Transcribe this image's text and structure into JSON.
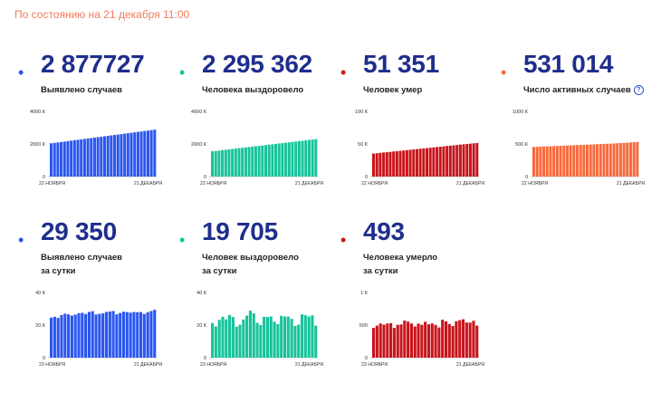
{
  "header": {
    "status": "По состоянию на 21 декабря 11:00"
  },
  "stats": [
    {
      "value": "2 877727",
      "label_lines": [
        "Выявлено случаев"
      ],
      "color": "#2a56f0",
      "info": false
    },
    {
      "value": "2 295 362",
      "label_lines": [
        "Человека выздоровело"
      ],
      "color": "#17c39b",
      "info": false
    },
    {
      "value": "51 351",
      "label_lines": [
        "Человек умер"
      ],
      "color": "#c8151b",
      "info": false
    },
    {
      "value": "531 014",
      "label_lines": [
        "Число активных случаев"
      ],
      "color": "#f86a3d",
      "info": true
    },
    {
      "value": "29 350",
      "label_lines": [
        "Выявлено случаев",
        "за сутки"
      ],
      "color": "#2a56f0",
      "info": false
    },
    {
      "value": "19 705",
      "label_lines": [
        "Человек выздоровело",
        "за сутки"
      ],
      "color": "#17c39b",
      "info": false
    },
    {
      "value": "493",
      "label_lines": [
        "Человека умерло",
        "за сутки"
      ],
      "color": "#c8151b",
      "info": false
    }
  ],
  "chart_data": [
    {
      "type": "bar",
      "title": "Выявлено случаев",
      "color": "#2a56f0",
      "x_start_label": "22 НОЯБРЯ",
      "x_end_label": "21 ДЕКАБРЯ",
      "ylim": [
        0,
        4000
      ],
      "yticks": [
        0,
        2000,
        4000
      ],
      "ytick_labels": [
        "0",
        "2000 К",
        "4000 К"
      ],
      "values": [
        2040,
        2067,
        2094,
        2121,
        2148,
        2175,
        2202,
        2229,
        2256,
        2283,
        2310,
        2337,
        2364,
        2391,
        2418,
        2445,
        2472,
        2499,
        2526,
        2553,
        2580,
        2607,
        2634,
        2661,
        2688,
        2715,
        2742,
        2769,
        2796,
        2823,
        2850,
        2878
      ]
    },
    {
      "type": "bar",
      "title": "Человека выздоровело",
      "color": "#17c39b",
      "x_start_label": "22 НОЯБРЯ",
      "x_end_label": "21 ДЕКАБРЯ",
      "ylim": [
        0,
        4000
      ],
      "yticks": [
        0,
        2000,
        4000
      ],
      "ytick_labels": [
        "0",
        "2000 К",
        "4000 К"
      ],
      "values": [
        1550,
        1574,
        1598,
        1622,
        1646,
        1670,
        1694,
        1718,
        1742,
        1766,
        1790,
        1814,
        1838,
        1862,
        1886,
        1910,
        1934,
        1958,
        1982,
        2006,
        2030,
        2054,
        2078,
        2102,
        2126,
        2150,
        2174,
        2198,
        2222,
        2246,
        2270,
        2295
      ]
    },
    {
      "type": "bar",
      "title": "Человек умер",
      "color": "#c8151b",
      "x_start_label": "22 НОЯБРЯ",
      "x_end_label": "21 ДЕКАБРЯ",
      "ylim": [
        0,
        100
      ],
      "yticks": [
        0,
        50,
        100
      ],
      "ytick_labels": [
        "0",
        "50 К",
        "100 К"
      ],
      "values": [
        35.3,
        35.8,
        36.4,
        36.9,
        37.4,
        37.9,
        38.5,
        39.0,
        39.5,
        40.0,
        40.6,
        41.1,
        41.6,
        42.1,
        42.7,
        43.2,
        43.7,
        44.2,
        44.8,
        45.3,
        45.8,
        46.3,
        46.9,
        47.4,
        47.9,
        48.4,
        49.0,
        49.5,
        50.0,
        50.5,
        51.0,
        51.4
      ]
    },
    {
      "type": "bar",
      "title": "Число активных случаев",
      "color": "#f86a3d",
      "x_start_label": "22 НОЯБРЯ",
      "x_end_label": "21 ДЕКАБРЯ",
      "ylim": [
        0,
        1000
      ],
      "yticks": [
        0,
        500,
        1000
      ],
      "ytick_labels": [
        "0",
        "500 К",
        "1000 К"
      ],
      "values": [
        455,
        457,
        459,
        461,
        463,
        465,
        467,
        470,
        472,
        474,
        476,
        478,
        481,
        483,
        485,
        487,
        489,
        492,
        494,
        496,
        499,
        501,
        503,
        506,
        508,
        511,
        514,
        517,
        520,
        524,
        528,
        531
      ]
    },
    {
      "type": "bar",
      "title": "Выявлено случаев за сутки",
      "color": "#2a56f0",
      "x_start_label": "23 НОЯБРЯ",
      "x_end_label": "21 ДЕКАБРЯ",
      "ylim": [
        0,
        40
      ],
      "yticks": [
        0,
        20,
        40
      ],
      "ytick_labels": [
        "0",
        "20 К",
        "40 К"
      ],
      "values": [
        24.6,
        25.1,
        24.4,
        26.2,
        27.0,
        26.6,
        25.8,
        26.4,
        27.3,
        27.5,
        26.8,
        28.1,
        28.5,
        26.5,
        26.9,
        27.2,
        28.1,
        28.3,
        28.6,
        26.6,
        27.4,
        28.2,
        28.0,
        27.6,
        28.0,
        27.9,
        28.0,
        26.8,
        27.9,
        28.6,
        29.4
      ]
    },
    {
      "type": "bar",
      "title": "Человек выздоровело за сутки",
      "color": "#17c39b",
      "x_start_label": "23 НОЯБРЯ",
      "x_end_label": "21 ДЕКАБРЯ",
      "ylim": [
        0,
        40
      ],
      "yticks": [
        0,
        20,
        40
      ],
      "ytick_labels": [
        "0",
        "20 К",
        "40 К"
      ],
      "values": [
        21.3,
        19.1,
        23.2,
        25.1,
        23.5,
        26.2,
        24.9,
        19.0,
        20.2,
        23.4,
        25.8,
        28.8,
        27.2,
        21.4,
        20.0,
        25.1,
        25.0,
        25.3,
        22.1,
        20.6,
        25.7,
        25.3,
        25.2,
        23.8,
        19.5,
        20.3,
        26.6,
        26.1,
        25.3,
        26.0,
        19.7
      ]
    },
    {
      "type": "bar",
      "title": "Человека умерло за сутки",
      "color": "#c8151b",
      "x_start_label": "23 НОЯБРЯ",
      "x_end_label": "21 ДЕКАБРЯ",
      "ylim": [
        0,
        1000
      ],
      "yticks": [
        0,
        500,
        1000
      ],
      "ytick_labels": [
        "0",
        "500",
        "1 К"
      ],
      "values": [
        456,
        491,
        524,
        507,
        524,
        530,
        456,
        504,
        510,
        569,
        554,
        524,
        479,
        522,
        504,
        551,
        512,
        525,
        503,
        463,
        582,
        558,
        517,
        485,
        559,
        575,
        589,
        540,
        538,
        566,
        493
      ]
    }
  ]
}
